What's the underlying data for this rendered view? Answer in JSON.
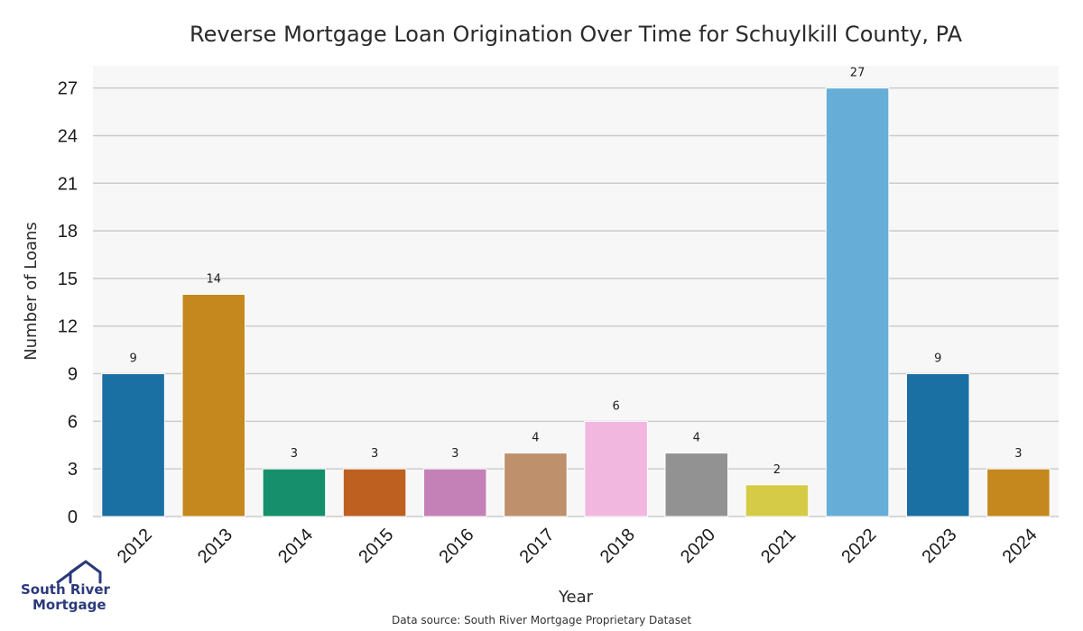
{
  "chart_data": {
    "type": "bar",
    "title": "Reverse Mortgage Loan Origination Over Time for Schuylkill County, PA",
    "xlabel": "Year",
    "ylabel": "Number of Loans",
    "categories": [
      "2012",
      "2013",
      "2014",
      "2015",
      "2016",
      "2017",
      "2018",
      "2020",
      "2021",
      "2022",
      "2023",
      "2024"
    ],
    "values": [
      9,
      14,
      3,
      3,
      3,
      4,
      6,
      4,
      2,
      27,
      9,
      3
    ],
    "colors": [
      "#1a6fa3",
      "#c4881f",
      "#16906c",
      "#bd6020",
      "#c481b7",
      "#be906c",
      "#f2b7df",
      "#929292",
      "#d6cb46",
      "#66aed8",
      "#1a6fa3",
      "#c4881f"
    ],
    "ylim": [
      0,
      28.4
    ],
    "yticks": [
      0,
      3,
      6,
      9,
      12,
      15,
      18,
      21,
      24,
      27
    ],
    "grid": true,
    "plot_background": "#f7f7f7",
    "grid_color": "#cccccc"
  },
  "footer": {
    "source": "Data source: South River Mortgage Proprietary Dataset"
  },
  "logo": {
    "line1": "South River",
    "line2": "Mortgage",
    "icon": "house-icon",
    "color": "#2b3a7a"
  }
}
